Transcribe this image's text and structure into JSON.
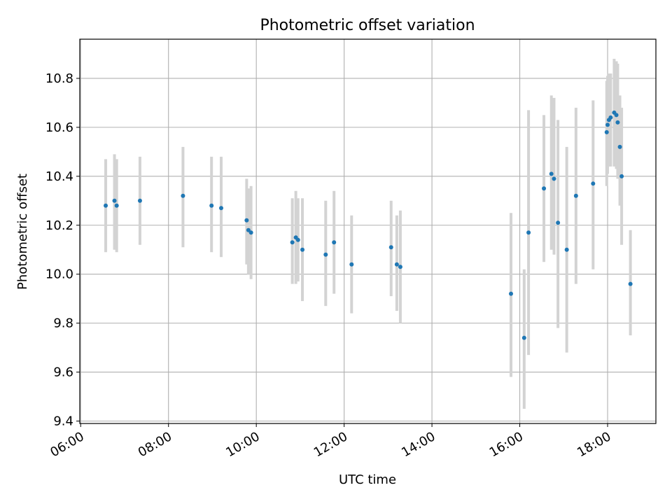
{
  "chart_data": {
    "type": "scatter",
    "title": "Photometric offset variation",
    "xlabel": "UTC time",
    "ylabel": "Photometric offset",
    "x_unit": "hours (UTC)",
    "xlim": [
      5.98,
      19.1
    ],
    "ylim": [
      9.39,
      10.96
    ],
    "x_ticks": [
      6,
      8,
      10,
      12,
      14,
      16,
      18
    ],
    "x_tick_labels": [
      "06:00",
      "08:00",
      "10:00",
      "12:00",
      "14:00",
      "16:00",
      "18:00"
    ],
    "y_ticks": [
      9.4,
      9.6,
      9.8,
      10.0,
      10.2,
      10.4,
      10.6,
      10.8
    ],
    "y_tick_labels": [
      "9.4",
      "9.6",
      "9.8",
      "10.0",
      "10.2",
      "10.4",
      "10.6",
      "10.8"
    ],
    "grid": true,
    "point_color": "#1f77b4",
    "errorbar_color": "#d3d3d3",
    "points": [
      {
        "x": 6.57,
        "y": 10.28,
        "lo": 10.09,
        "hi": 10.47
      },
      {
        "x": 6.77,
        "y": 10.3,
        "lo": 10.1,
        "hi": 10.49
      },
      {
        "x": 6.82,
        "y": 10.28,
        "lo": 10.09,
        "hi": 10.47
      },
      {
        "x": 7.35,
        "y": 10.3,
        "lo": 10.12,
        "hi": 10.48
      },
      {
        "x": 8.33,
        "y": 10.32,
        "lo": 10.11,
        "hi": 10.52
      },
      {
        "x": 8.98,
        "y": 10.28,
        "lo": 10.09,
        "hi": 10.48
      },
      {
        "x": 9.2,
        "y": 10.27,
        "lo": 10.07,
        "hi": 10.48
      },
      {
        "x": 9.78,
        "y": 10.22,
        "lo": 10.04,
        "hi": 10.39
      },
      {
        "x": 9.82,
        "y": 10.18,
        "lo": 10.0,
        "hi": 10.35
      },
      {
        "x": 9.88,
        "y": 10.17,
        "lo": 9.98,
        "hi": 10.36
      },
      {
        "x": 10.82,
        "y": 10.13,
        "lo": 9.96,
        "hi": 10.31
      },
      {
        "x": 10.9,
        "y": 10.15,
        "lo": 9.96,
        "hi": 10.34
      },
      {
        "x": 10.95,
        "y": 10.14,
        "lo": 9.97,
        "hi": 10.31
      },
      {
        "x": 11.05,
        "y": 10.1,
        "lo": 9.89,
        "hi": 10.31
      },
      {
        "x": 11.58,
        "y": 10.08,
        "lo": 9.87,
        "hi": 10.3
      },
      {
        "x": 11.77,
        "y": 10.13,
        "lo": 9.92,
        "hi": 10.34
      },
      {
        "x": 12.17,
        "y": 10.04,
        "lo": 9.84,
        "hi": 10.24
      },
      {
        "x": 13.07,
        "y": 10.11,
        "lo": 9.91,
        "hi": 10.3
      },
      {
        "x": 13.2,
        "y": 10.04,
        "lo": 9.85,
        "hi": 10.24
      },
      {
        "x": 13.28,
        "y": 10.03,
        "lo": 9.8,
        "hi": 10.26
      },
      {
        "x": 15.8,
        "y": 9.92,
        "lo": 9.58,
        "hi": 10.25
      },
      {
        "x": 16.1,
        "y": 9.74,
        "lo": 9.45,
        "hi": 10.02
      },
      {
        "x": 16.2,
        "y": 10.17,
        "lo": 9.67,
        "hi": 10.67
      },
      {
        "x": 16.55,
        "y": 10.35,
        "lo": 10.05,
        "hi": 10.65
      },
      {
        "x": 16.72,
        "y": 10.41,
        "lo": 10.1,
        "hi": 10.73
      },
      {
        "x": 16.78,
        "y": 10.39,
        "lo": 10.08,
        "hi": 10.72
      },
      {
        "x": 16.87,
        "y": 10.21,
        "lo": 9.78,
        "hi": 10.63
      },
      {
        "x": 17.07,
        "y": 10.1,
        "lo": 9.68,
        "hi": 10.52
      },
      {
        "x": 17.28,
        "y": 10.32,
        "lo": 9.96,
        "hi": 10.68
      },
      {
        "x": 17.67,
        "y": 10.37,
        "lo": 10.02,
        "hi": 10.71
      },
      {
        "x": 17.98,
        "y": 10.58,
        "lo": 10.36,
        "hi": 10.79
      },
      {
        "x": 18.0,
        "y": 10.61,
        "lo": 10.41,
        "hi": 10.81
      },
      {
        "x": 18.03,
        "y": 10.63,
        "lo": 10.44,
        "hi": 10.82
      },
      {
        "x": 18.07,
        "y": 10.64,
        "lo": 10.44,
        "hi": 10.82
      },
      {
        "x": 18.15,
        "y": 10.66,
        "lo": 10.44,
        "hi": 10.88
      },
      {
        "x": 18.2,
        "y": 10.65,
        "lo": 10.43,
        "hi": 10.87
      },
      {
        "x": 18.23,
        "y": 10.62,
        "lo": 10.39,
        "hi": 10.86
      },
      {
        "x": 18.28,
        "y": 10.52,
        "lo": 10.28,
        "hi": 10.73
      },
      {
        "x": 18.32,
        "y": 10.4,
        "lo": 10.12,
        "hi": 10.68
      },
      {
        "x": 18.52,
        "y": 9.96,
        "lo": 9.75,
        "hi": 10.18
      }
    ]
  }
}
